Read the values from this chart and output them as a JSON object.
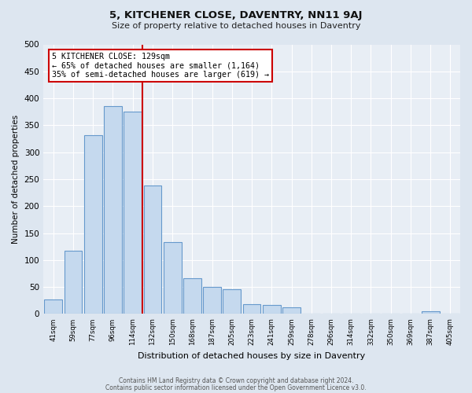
{
  "title": "5, KITCHENER CLOSE, DAVENTRY, NN11 9AJ",
  "subtitle": "Size of property relative to detached houses in Daventry",
  "xlabel": "Distribution of detached houses by size in Daventry",
  "ylabel": "Number of detached properties",
  "categories": [
    "41sqm",
    "59sqm",
    "77sqm",
    "96sqm",
    "114sqm",
    "132sqm",
    "150sqm",
    "168sqm",
    "187sqm",
    "205sqm",
    "223sqm",
    "241sqm",
    "259sqm",
    "278sqm",
    "296sqm",
    "314sqm",
    "332sqm",
    "350sqm",
    "369sqm",
    "387sqm",
    "405sqm"
  ],
  "bar_heights": [
    27,
    117,
    332,
    385,
    375,
    238,
    133,
    66,
    50,
    46,
    18,
    17,
    13,
    0,
    0,
    0,
    0,
    0,
    0,
    5,
    0
  ],
  "bar_color": "#c5d9ee",
  "bar_edge_color": "#6699cc",
  "vline_index": 5,
  "vline_color": "#cc0000",
  "ylim": [
    0,
    500
  ],
  "yticks": [
    0,
    50,
    100,
    150,
    200,
    250,
    300,
    350,
    400,
    450,
    500
  ],
  "annotation_title": "5 KITCHENER CLOSE: 129sqm",
  "annotation_line1": "← 65% of detached houses are smaller (1,164)",
  "annotation_line2": "35% of semi-detached houses are larger (619) →",
  "annotation_box_color": "#ffffff",
  "annotation_box_edge_color": "#cc0000",
  "footer_line1": "Contains HM Land Registry data © Crown copyright and database right 2024.",
  "footer_line2": "Contains public sector information licensed under the Open Government Licence v3.0.",
  "fig_bg_color": "#dde6f0",
  "plot_bg_color": "#e8eef5",
  "grid_color": "#ffffff"
}
